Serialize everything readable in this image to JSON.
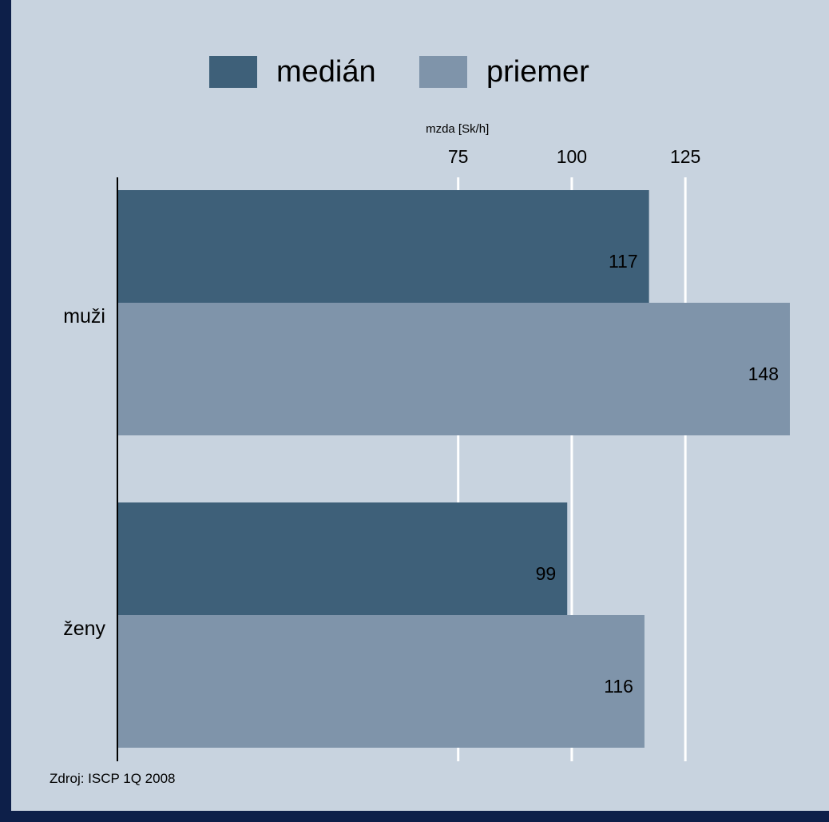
{
  "chart_data": {
    "type": "bar",
    "orientation": "horizontal",
    "xlabel": "mzda [Sk/h]",
    "categories": [
      "muži",
      "ženy"
    ],
    "series": [
      {
        "name": "medián",
        "values": [
          117,
          99
        ],
        "color": "#3e6079"
      },
      {
        "name": "priemer",
        "values": [
          148,
          116
        ],
        "color": "#7f94aa"
      }
    ],
    "x_ticks": [
      75,
      100,
      125
    ],
    "xlim": [
      0,
      148
    ],
    "grid": true,
    "legend": "top"
  },
  "source": "Zdroj: ISCP 1Q 2008",
  "colors": {
    "page_border": "#0d1f49",
    "panel": "#c8d3df",
    "grid": "#ffffff",
    "axis": "#000000"
  }
}
